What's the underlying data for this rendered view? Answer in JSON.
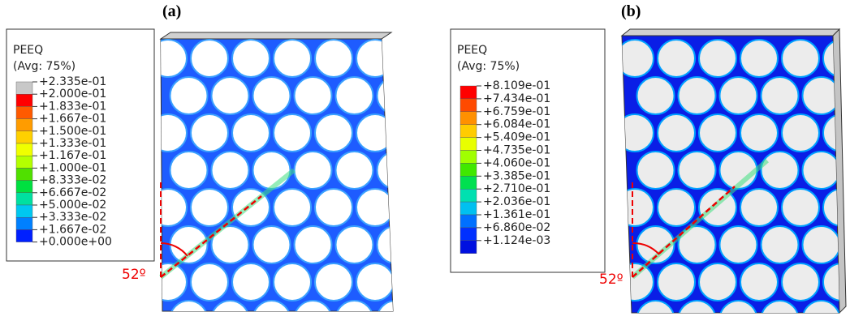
{
  "panels": [
    {
      "label": "(a)",
      "legend": {
        "title": "PEEQ",
        "subtitle": "(Avg: 75%)",
        "entries": [
          "+2.335e-01",
          "+2.000e-01",
          "+1.833e-01",
          "+1.667e-01",
          "+1.500e-01",
          "+1.333e-01",
          "+1.167e-01",
          "+1.000e-01",
          "+8.333e-02",
          "+6.667e-02",
          "+5.000e-02",
          "+3.333e-02",
          "+1.667e-02",
          "+0.000e+00"
        ]
      },
      "angle": "52º"
    },
    {
      "label": "(b)",
      "legend": {
        "title": "PEEQ",
        "subtitle": "(Avg: 75%)",
        "entries": [
          "+8.109e-01",
          "+7.434e-01",
          "+6.759e-01",
          "+6.084e-01",
          "+5.409e-01",
          "+4.735e-01",
          "+4.060e-01",
          "+3.385e-01",
          "+2.710e-01",
          "+2.036e-01",
          "+1.361e-01",
          "+6.860e-02",
          "+1.124e-03"
        ]
      },
      "angle": "52º"
    }
  ]
}
